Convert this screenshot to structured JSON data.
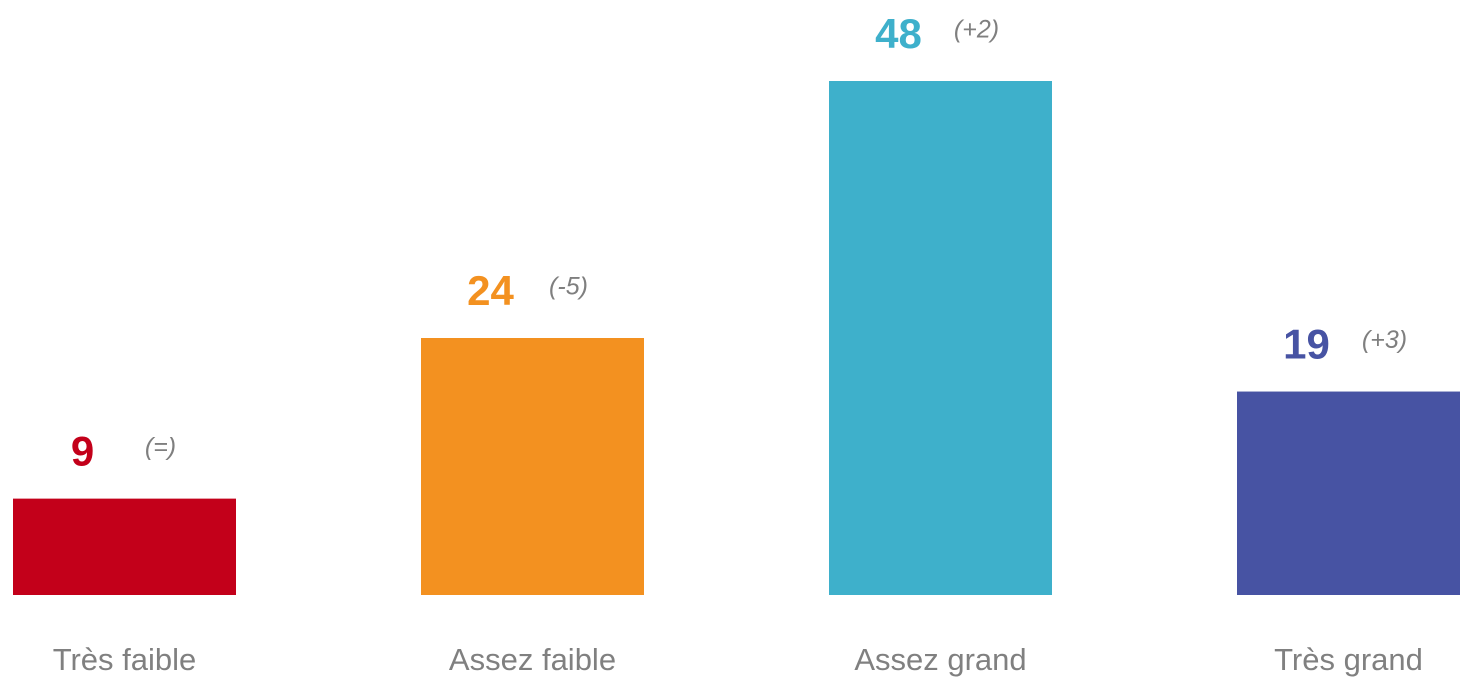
{
  "chart_data": {
    "type": "bar",
    "categories": [
      "Très faible",
      "Assez faible",
      "Assez grand",
      "Très grand"
    ],
    "values": [
      9,
      24,
      48,
      19
    ],
    "colors": [
      "#c3001a",
      "#f39120",
      "#3eb0cb",
      "#4753a3"
    ],
    "annotations": [
      "(=)",
      "(-5)",
      "(+2)",
      "(+3)"
    ],
    "ylim": [
      0,
      48
    ]
  }
}
